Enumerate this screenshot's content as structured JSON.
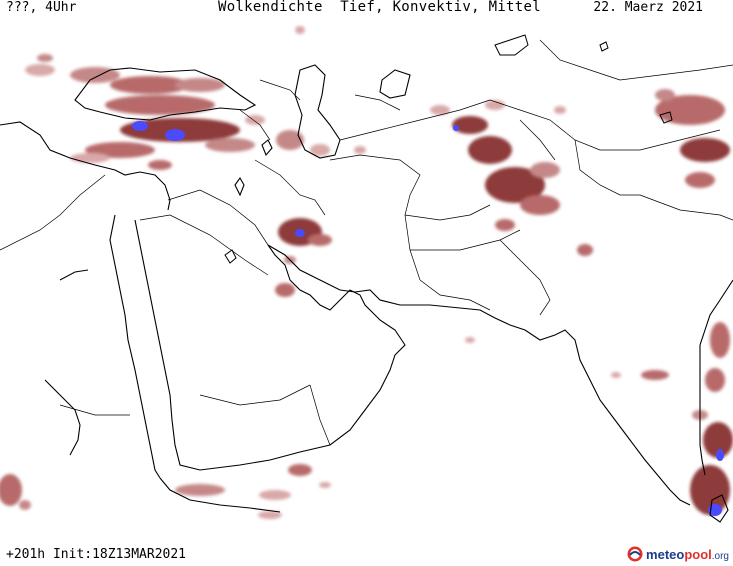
{
  "header": {
    "left_label": "???, 4Uhr",
    "title": "Wolkendichte  Tief, Konvektiv, Mittel",
    "date": "22. Maerz 2021"
  },
  "footer": {
    "run_label": "+201h Init:18Z13MAR2021"
  },
  "logo": {
    "brand_a": "meteo",
    "brand_b": "pool",
    "brand_c": ".org"
  },
  "colors": {
    "cloud_low": "#d9a8a8",
    "cloud_mid": "#b86b6b",
    "cloud_high": "#8e3a3a",
    "cloud_convective": "#4a4aff",
    "coastline": "#000000",
    "border": "#000000"
  }
}
